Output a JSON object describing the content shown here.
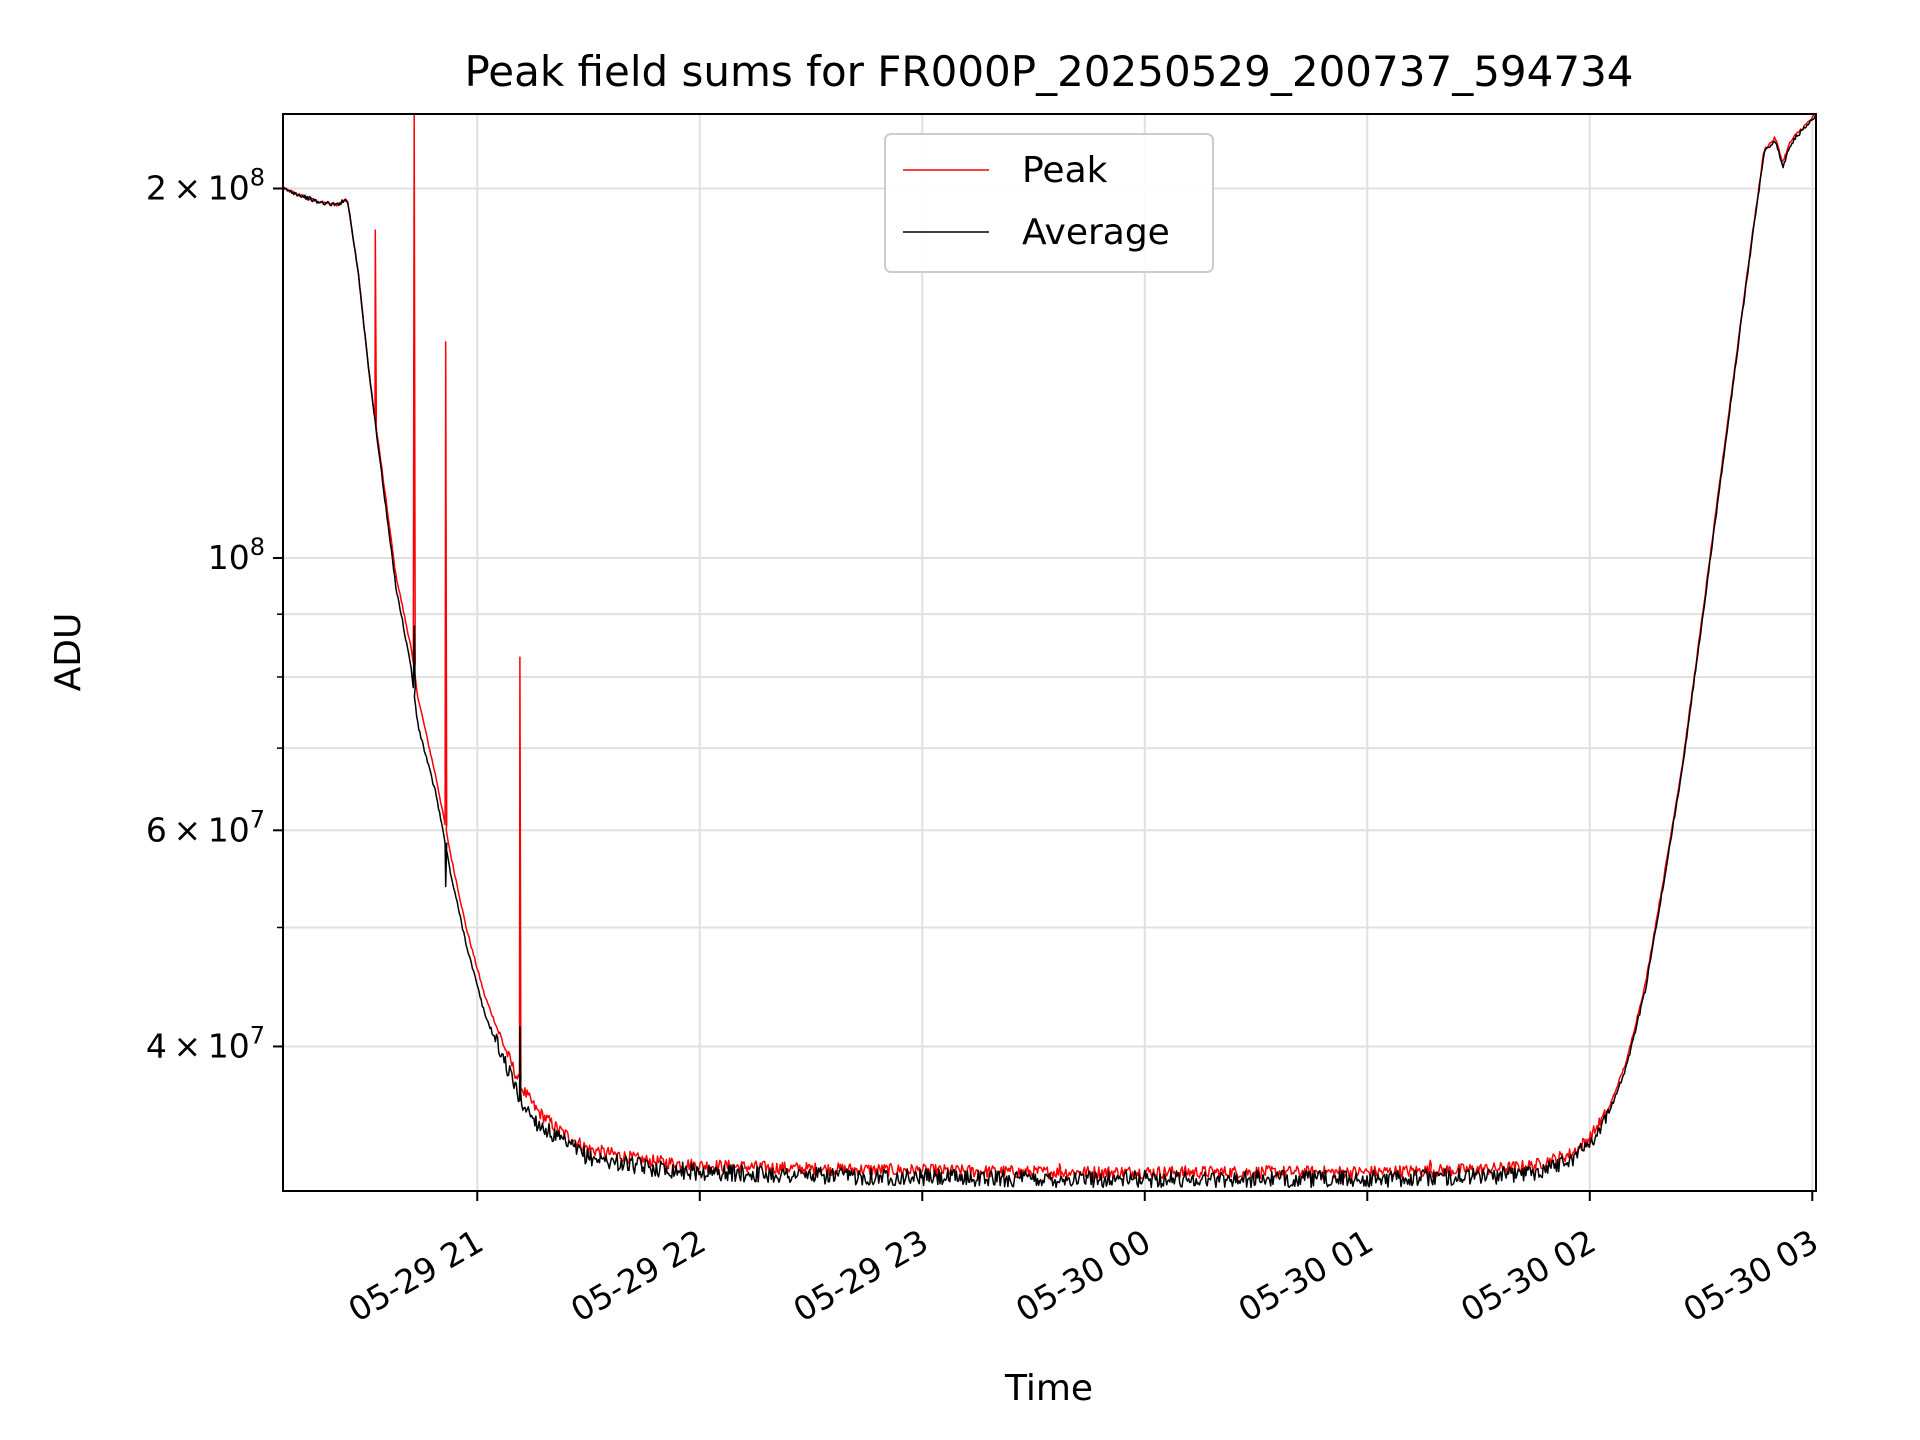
{
  "chart_data": {
    "type": "line",
    "title": "Peak field sums for FR000P_20250529_200737_594734",
    "xlabel": "Time",
    "ylabel": "ADU",
    "yscale": "log",
    "ylim": [
      30500000,
      230000000
    ],
    "xlim": [
      "2025-05-29 20:07:37",
      "2025-05-30 03:01:00"
    ],
    "grid": true,
    "legend_position": "top-center",
    "x_ticks": [
      {
        "t": "2025-05-29 21:00",
        "label": "05-29 21"
      },
      {
        "t": "2025-05-29 22:00",
        "label": "05-29 22"
      },
      {
        "t": "2025-05-29 23:00",
        "label": "05-29 23"
      },
      {
        "t": "2025-05-30 00:00",
        "label": "05-30 00"
      },
      {
        "t": "2025-05-30 01:00",
        "label": "05-30 01"
      },
      {
        "t": "2025-05-30 02:00",
        "label": "05-30 02"
      },
      {
        "t": "2025-05-30 03:00",
        "label": "05-30 03"
      }
    ],
    "y_major_ticks": [
      {
        "value": 40000000,
        "mant": "4",
        "exp": "7"
      },
      {
        "value": 60000000,
        "mant": "6",
        "exp": "7"
      },
      {
        "value": 100000000,
        "mant": "",
        "exp": "8"
      },
      {
        "value": 200000000,
        "mant": "2",
        "exp": "8"
      }
    ],
    "y_minor_ticks": [
      50000000,
      70000000,
      80000000,
      90000000
    ],
    "series": [
      {
        "name": "Peak",
        "color": "#ff0000",
        "noise": 0.012,
        "x": [
          "2025-05-29 20:07:37",
          "2025-05-29 20:17:00",
          "2025-05-29 20:22:00",
          "2025-05-29 20:25:00",
          "2025-05-29 20:28:00",
          "2025-05-29 20:31:00",
          "2025-05-29 20:36:00",
          "2025-05-29 20:38:00",
          "2025-05-29 20:42:00",
          "2025-05-29 20:44:00",
          "2025-05-29 20:49:00",
          "2025-05-29 20:53:00",
          "2025-05-29 20:57:00",
          "2025-05-29 21:02:00",
          "2025-05-29 21:08:00",
          "2025-05-29 21:12:00",
          "2025-05-29 21:16:00",
          "2025-05-29 21:22:00",
          "2025-05-29 21:30:00",
          "2025-05-29 21:45:00",
          "2025-05-29 22:00:00",
          "2025-05-29 22:30:00",
          "2025-05-29 23:00:00",
          "2025-05-29 23:30:00",
          "2025-05-30 00:00:00",
          "2025-05-30 00:30:00",
          "2025-05-30 01:00:00",
          "2025-05-30 01:20:00",
          "2025-05-30 01:35:00",
          "2025-05-30 01:45:00",
          "2025-05-30 01:55:00",
          "2025-05-30 02:00:00",
          "2025-05-30 02:05:00",
          "2025-05-30 02:10:00",
          "2025-05-30 02:15:00",
          "2025-05-30 02:20:00",
          "2025-05-30 02:25:00",
          "2025-05-30 02:30:00",
          "2025-05-30 02:35:00",
          "2025-05-30 02:40:00",
          "2025-05-30 02:44:00",
          "2025-05-30 02:47:00",
          "2025-05-30 02:50:00",
          "2025-05-30 02:52:00",
          "2025-05-30 02:54:00",
          "2025-05-30 02:56:00",
          "2025-05-30 02:58:00",
          "2025-05-30 03:01:00"
        ],
        "y": [
          200000000,
          195000000,
          194000000,
          196000000,
          170000000,
          140000000,
          108000000,
          97000000,
          85000000,
          77000000,
          66000000,
          57000000,
          50000000,
          44000000,
          39500000,
          37000000,
          35500000,
          34200000,
          33000000,
          32300000,
          32000000,
          31800000,
          31700000,
          31600000,
          31600000,
          31600000,
          31600000,
          31700000,
          31800000,
          32000000,
          32700000,
          33700000,
          35500000,
          39000000,
          45000000,
          55000000,
          68000000,
          88000000,
          115000000,
          150000000,
          185000000,
          215000000,
          220000000,
          210000000,
          218000000,
          222000000,
          225000000,
          230000000
        ],
        "spikes": [
          {
            "t": "2025-05-29 20:32:30",
            "value": 185000000
          },
          {
            "t": "2025-05-29 20:43:00",
            "value": 230000000
          },
          {
            "t": "2025-05-29 20:51:30",
            "value": 150000000
          },
          {
            "t": "2025-05-29 21:11:30",
            "value": 83000000
          },
          {
            "t": "2025-05-29 23:37:00",
            "value": 32100000
          },
          {
            "t": "2025-05-30 01:17:00",
            "value": 32300000
          }
        ]
      },
      {
        "name": "Average",
        "color": "#000000",
        "noise": 0.016,
        "x": [
          "2025-05-29 20:07:37",
          "2025-05-29 20:17:00",
          "2025-05-29 20:22:00",
          "2025-05-29 20:25:00",
          "2025-05-29 20:28:00",
          "2025-05-29 20:31:00",
          "2025-05-29 20:36:00",
          "2025-05-29 20:38:00",
          "2025-05-29 20:42:00",
          "2025-05-29 20:44:00",
          "2025-05-29 20:49:00",
          "2025-05-29 20:53:00",
          "2025-05-29 20:57:00",
          "2025-05-29 21:02:00",
          "2025-05-29 21:08:00",
          "2025-05-29 21:12:00",
          "2025-05-29 21:16:00",
          "2025-05-29 21:22:00",
          "2025-05-29 21:30:00",
          "2025-05-29 21:45:00",
          "2025-05-29 22:00:00",
          "2025-05-29 22:30:00",
          "2025-05-29 23:00:00",
          "2025-05-29 23:30:00",
          "2025-05-30 00:00:00",
          "2025-05-30 00:30:00",
          "2025-05-30 01:00:00",
          "2025-05-30 01:20:00",
          "2025-05-30 01:35:00",
          "2025-05-30 01:45:00",
          "2025-05-30 01:55:00",
          "2025-05-30 02:00:00",
          "2025-05-30 02:05:00",
          "2025-05-30 02:10:00",
          "2025-05-30 02:15:00",
          "2025-05-30 02:20:00",
          "2025-05-30 02:25:00",
          "2025-05-30 02:30:00",
          "2025-05-30 02:35:00",
          "2025-05-30 02:40:00",
          "2025-05-30 02:44:00",
          "2025-05-30 02:47:00",
          "2025-05-30 02:50:00",
          "2025-05-30 02:52:00",
          "2025-05-30 02:54:00",
          "2025-05-30 02:56:00",
          "2025-05-30 02:58:00",
          "2025-05-30 03:01:00"
        ],
        "y": [
          200000000,
          195000000,
          194000000,
          196000000,
          170000000,
          140000000,
          106000000,
          95000000,
          82000000,
          73000000,
          64000000,
          55000000,
          48500000,
          42500000,
          38500000,
          36000000,
          34700000,
          33600000,
          32500000,
          31900000,
          31600000,
          31400000,
          31300000,
          31200000,
          31200000,
          31200000,
          31200000,
          31300000,
          31400000,
          31600000,
          32400000,
          33400000,
          35200000,
          38600000,
          44500000,
          54500000,
          67500000,
          87500000,
          114000000,
          149000000,
          184000000,
          214000000,
          219000000,
          208000000,
          217000000,
          221000000,
          224000000,
          229000000
        ],
        "spikes": [
          {
            "t": "2025-05-29 20:43:00",
            "value": 88000000
          },
          {
            "t": "2025-05-29 20:51:30",
            "value": 54000000
          },
          {
            "t": "2025-05-29 21:11:30",
            "value": 41500000
          }
        ]
      }
    ]
  }
}
